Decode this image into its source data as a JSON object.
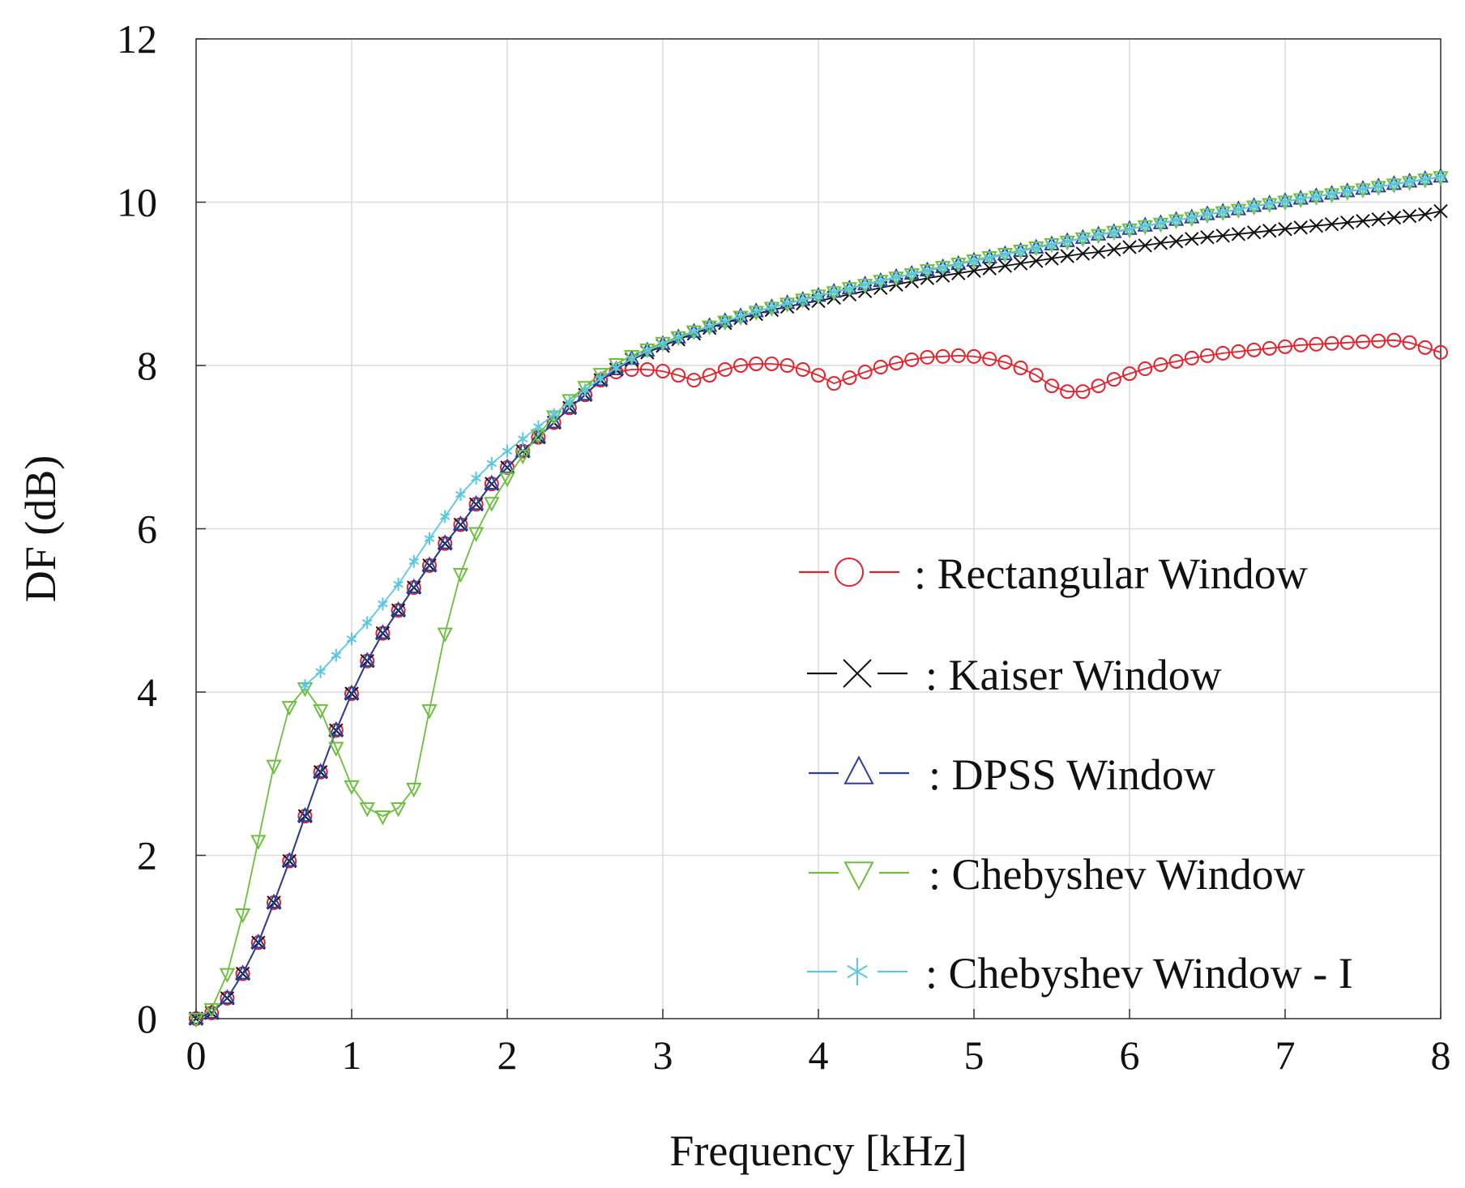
{
  "chart_data": {
    "type": "line",
    "title": "",
    "xlabel": "Frequency [kHz]",
    "ylabel": "DF (dB)",
    "xlim": [
      0,
      8
    ],
    "ylim": [
      0,
      12
    ],
    "xticks": [
      "0",
      "1",
      "2",
      "3",
      "4",
      "5",
      "6",
      "7",
      "8"
    ],
    "yticks": [
      "0",
      "2",
      "4",
      "6",
      "8",
      "10",
      "12"
    ],
    "grid": true,
    "legend_position": "center-right",
    "series": [
      {
        "name": ": Rectangular Window",
        "color": "#e8202a",
        "marker": "circle",
        "x": [
          0,
          0.1,
          0.2,
          0.3,
          0.4,
          0.5,
          0.6,
          0.7,
          0.8,
          0.9,
          1.0,
          1.1,
          1.2,
          1.3,
          1.4,
          1.5,
          1.6,
          1.7,
          1.8,
          1.9,
          2.0,
          2.1,
          2.2,
          2.3,
          2.4,
          2.5,
          2.6,
          2.7,
          2.8,
          2.9,
          3.0,
          3.1,
          3.2,
          3.3,
          3.4,
          3.5,
          3.6,
          3.7,
          3.8,
          3.9,
          4.0,
          4.1,
          4.2,
          4.3,
          4.4,
          4.5,
          4.6,
          4.7,
          4.8,
          4.9,
          5.0,
          5.1,
          5.2,
          5.3,
          5.4,
          5.5,
          5.6,
          5.7,
          5.8,
          5.9,
          6.0,
          6.1,
          6.2,
          6.3,
          6.4,
          6.5,
          6.6,
          6.7,
          6.8,
          6.9,
          7.0,
          7.1,
          7.2,
          7.3,
          7.4,
          7.5,
          7.6,
          7.7,
          7.8,
          7.9,
          8.0
        ],
        "y": [
          0,
          0.07,
          0.25,
          0.55,
          0.93,
          1.42,
          1.93,
          2.48,
          3.02,
          3.53,
          3.98,
          4.38,
          4.72,
          5.0,
          5.28,
          5.55,
          5.82,
          6.05,
          6.3,
          6.55,
          6.75,
          6.95,
          7.12,
          7.3,
          7.48,
          7.64,
          7.82,
          7.92,
          7.95,
          7.95,
          7.93,
          7.88,
          7.82,
          7.88,
          7.95,
          8.0,
          8.02,
          8.02,
          8.0,
          7.95,
          7.88,
          7.78,
          7.85,
          7.92,
          7.98,
          8.03,
          8.07,
          8.1,
          8.11,
          8.12,
          8.11,
          8.08,
          8.04,
          7.97,
          7.88,
          7.75,
          7.68,
          7.68,
          7.75,
          7.83,
          7.9,
          7.96,
          8.01,
          8.05,
          8.09,
          8.12,
          8.15,
          8.17,
          8.19,
          8.21,
          8.23,
          8.25,
          8.26,
          8.27,
          8.28,
          8.29,
          8.3,
          8.31,
          8.28,
          8.22,
          8.16
        ]
      },
      {
        "name": ": Kaiser Window",
        "color": "#111111",
        "marker": "x",
        "x": [
          0,
          0.1,
          0.2,
          0.3,
          0.4,
          0.5,
          0.6,
          0.7,
          0.8,
          0.9,
          1.0,
          1.1,
          1.2,
          1.3,
          1.4,
          1.5,
          1.6,
          1.7,
          1.8,
          1.9,
          2.0,
          2.1,
          2.2,
          2.3,
          2.4,
          2.5,
          2.6,
          2.7,
          2.8,
          2.9,
          3.0,
          3.1,
          3.2,
          3.3,
          3.4,
          3.5,
          3.6,
          3.7,
          3.8,
          3.9,
          4.0,
          4.1,
          4.2,
          4.3,
          4.4,
          4.5,
          4.6,
          4.7,
          4.8,
          4.9,
          5.0,
          5.1,
          5.2,
          5.3,
          5.4,
          5.5,
          5.6,
          5.7,
          5.8,
          5.9,
          6.0,
          6.1,
          6.2,
          6.3,
          6.4,
          6.5,
          6.6,
          6.7,
          6.8,
          6.9,
          7.0,
          7.1,
          7.2,
          7.3,
          7.4,
          7.5,
          7.6,
          7.7,
          7.8,
          7.9,
          8.0
        ],
        "y": [
          0,
          0.07,
          0.25,
          0.55,
          0.93,
          1.42,
          1.93,
          2.48,
          3.02,
          3.53,
          3.98,
          4.38,
          4.72,
          5.0,
          5.28,
          5.55,
          5.82,
          6.05,
          6.3,
          6.55,
          6.75,
          6.95,
          7.12,
          7.3,
          7.48,
          7.64,
          7.82,
          7.95,
          8.07,
          8.16,
          8.24,
          8.32,
          8.39,
          8.46,
          8.52,
          8.58,
          8.63,
          8.68,
          8.72,
          8.76,
          8.79,
          8.83,
          8.87,
          8.91,
          8.95,
          8.99,
          9.03,
          9.07,
          9.1,
          9.13,
          9.16,
          9.19,
          9.22,
          9.25,
          9.28,
          9.31,
          9.34,
          9.37,
          9.39,
          9.42,
          9.45,
          9.47,
          9.5,
          9.52,
          9.55,
          9.57,
          9.59,
          9.61,
          9.63,
          9.65,
          9.67,
          9.69,
          9.71,
          9.73,
          9.75,
          9.77,
          9.79,
          9.81,
          9.83,
          9.85,
          9.89
        ]
      },
      {
        "name": ": DPSS Window",
        "color": "#2a3f9e",
        "marker": "triangle-up",
        "x": [
          0,
          0.1,
          0.2,
          0.3,
          0.4,
          0.5,
          0.6,
          0.7,
          0.8,
          0.9,
          1.0,
          1.1,
          1.2,
          1.3,
          1.4,
          1.5,
          1.6,
          1.7,
          1.8,
          1.9,
          2.0,
          2.1,
          2.2,
          2.3,
          2.4,
          2.5,
          2.6,
          2.7,
          2.8,
          2.9,
          3.0,
          3.1,
          3.2,
          3.3,
          3.4,
          3.5,
          3.6,
          3.7,
          3.8,
          3.9,
          4.0,
          4.1,
          4.2,
          4.3,
          4.4,
          4.5,
          4.6,
          4.7,
          4.8,
          4.9,
          5.0,
          5.1,
          5.2,
          5.3,
          5.4,
          5.5,
          5.6,
          5.7,
          5.8,
          5.9,
          6.0,
          6.1,
          6.2,
          6.3,
          6.4,
          6.5,
          6.6,
          6.7,
          6.8,
          6.9,
          7.0,
          7.1,
          7.2,
          7.3,
          7.4,
          7.5,
          7.6,
          7.7,
          7.8,
          7.9,
          8.0
        ],
        "y": [
          0,
          0.07,
          0.25,
          0.55,
          0.93,
          1.42,
          1.93,
          2.48,
          3.02,
          3.53,
          3.98,
          4.38,
          4.72,
          5.0,
          5.28,
          5.55,
          5.82,
          6.05,
          6.3,
          6.55,
          6.75,
          6.95,
          7.12,
          7.3,
          7.48,
          7.64,
          7.82,
          7.95,
          8.08,
          8.18,
          8.26,
          8.34,
          8.41,
          8.48,
          8.54,
          8.6,
          8.66,
          8.71,
          8.76,
          8.8,
          8.85,
          8.9,
          8.94,
          8.99,
          9.03,
          9.08,
          9.12,
          9.16,
          9.2,
          9.24,
          9.28,
          9.32,
          9.36,
          9.4,
          9.44,
          9.48,
          9.52,
          9.56,
          9.6,
          9.63,
          9.67,
          9.71,
          9.74,
          9.78,
          9.81,
          9.85,
          9.88,
          9.91,
          9.95,
          9.98,
          10.01,
          10.04,
          10.07,
          10.1,
          10.13,
          10.16,
          10.19,
          10.22,
          10.25,
          10.28,
          10.31
        ]
      },
      {
        "name": ": Chebyshev Window",
        "color": "#6bbf3c",
        "marker": "triangle-down",
        "x": [
          0,
          0.1,
          0.2,
          0.3,
          0.4,
          0.5,
          0.6,
          0.7,
          0.8,
          0.9,
          1.0,
          1.1,
          1.2,
          1.3,
          1.4,
          1.5,
          1.6,
          1.7,
          1.8,
          1.9,
          2.0,
          2.1,
          2.2,
          2.3,
          2.4,
          2.5,
          2.6,
          2.7,
          2.8,
          2.9,
          3.0,
          3.1,
          3.2,
          3.3,
          3.4,
          3.5,
          3.6,
          3.7,
          3.8,
          3.9,
          4.0,
          4.1,
          4.2,
          4.3,
          4.4,
          4.5,
          4.6,
          4.7,
          4.8,
          4.9,
          5.0,
          5.1,
          5.2,
          5.3,
          5.4,
          5.5,
          5.6,
          5.7,
          5.8,
          5.9,
          6.0,
          6.1,
          6.2,
          6.3,
          6.4,
          6.5,
          6.6,
          6.7,
          6.8,
          6.9,
          7.0,
          7.1,
          7.2,
          7.3,
          7.4,
          7.5,
          7.6,
          7.7,
          7.8,
          7.9,
          8.0
        ],
        "y": [
          0,
          0.12,
          0.55,
          1.28,
          2.18,
          3.1,
          3.82,
          4.05,
          3.78,
          3.32,
          2.85,
          2.58,
          2.48,
          2.58,
          2.82,
          3.78,
          4.72,
          5.45,
          5.95,
          6.32,
          6.62,
          6.9,
          7.15,
          7.38,
          7.58,
          7.74,
          7.9,
          8.02,
          8.12,
          8.2,
          8.28,
          8.35,
          8.42,
          8.48,
          8.54,
          8.6,
          8.66,
          8.71,
          8.76,
          8.81,
          8.86,
          8.9,
          8.95,
          8.99,
          9.04,
          9.08,
          9.12,
          9.17,
          9.21,
          9.25,
          9.29,
          9.33,
          9.37,
          9.41,
          9.45,
          9.49,
          9.52,
          9.56,
          9.6,
          9.64,
          9.67,
          9.71,
          9.74,
          9.78,
          9.81,
          9.85,
          9.88,
          9.91,
          9.95,
          9.98,
          10.01,
          10.04,
          10.07,
          10.1,
          10.13,
          10.16,
          10.19,
          10.22,
          10.25,
          10.28,
          10.31
        ]
      },
      {
        "name": ": Chebyshev Window - I",
        "color": "#5bc8e3",
        "marker": "asterisk",
        "x": [
          0.7,
          0.8,
          0.9,
          1.0,
          1.1,
          1.2,
          1.3,
          1.4,
          1.5,
          1.6,
          1.7,
          1.8,
          1.9,
          2.0,
          2.1,
          2.2,
          2.3,
          2.4,
          2.5,
          2.6,
          2.7,
          2.8,
          2.9,
          3.0,
          3.1,
          3.2,
          3.3,
          3.4,
          3.5,
          3.6,
          3.7,
          3.8,
          3.9,
          4.0,
          4.1,
          4.2,
          4.3,
          4.4,
          4.5,
          4.6,
          4.7,
          4.8,
          4.9,
          5.0,
          5.1,
          5.2,
          5.3,
          5.4,
          5.5,
          5.6,
          5.7,
          5.8,
          5.9,
          6.0,
          6.1,
          6.2,
          6.3,
          6.4,
          6.5,
          6.6,
          6.7,
          6.8,
          6.9,
          7.0,
          7.1,
          7.2,
          7.3,
          7.4,
          7.5,
          7.6,
          7.7,
          7.8,
          7.9,
          8.0
        ],
        "y": [
          4.08,
          4.25,
          4.45,
          4.65,
          4.85,
          5.08,
          5.32,
          5.6,
          5.88,
          6.15,
          6.42,
          6.62,
          6.8,
          6.95,
          7.1,
          7.25,
          7.4,
          7.55,
          7.7,
          7.84,
          7.97,
          8.08,
          8.18,
          8.26,
          8.34,
          8.41,
          8.48,
          8.54,
          8.6,
          8.66,
          8.71,
          8.76,
          8.8,
          8.85,
          8.9,
          8.94,
          8.99,
          9.03,
          9.08,
          9.12,
          9.16,
          9.2,
          9.24,
          9.28,
          9.32,
          9.36,
          9.4,
          9.44,
          9.48,
          9.52,
          9.56,
          9.6,
          9.63,
          9.67,
          9.71,
          9.74,
          9.78,
          9.81,
          9.85,
          9.88,
          9.91,
          9.95,
          9.98,
          10.01,
          10.04,
          10.07,
          10.1,
          10.13,
          10.16,
          10.19,
          10.22,
          10.25,
          10.28,
          10.31
        ]
      }
    ]
  }
}
